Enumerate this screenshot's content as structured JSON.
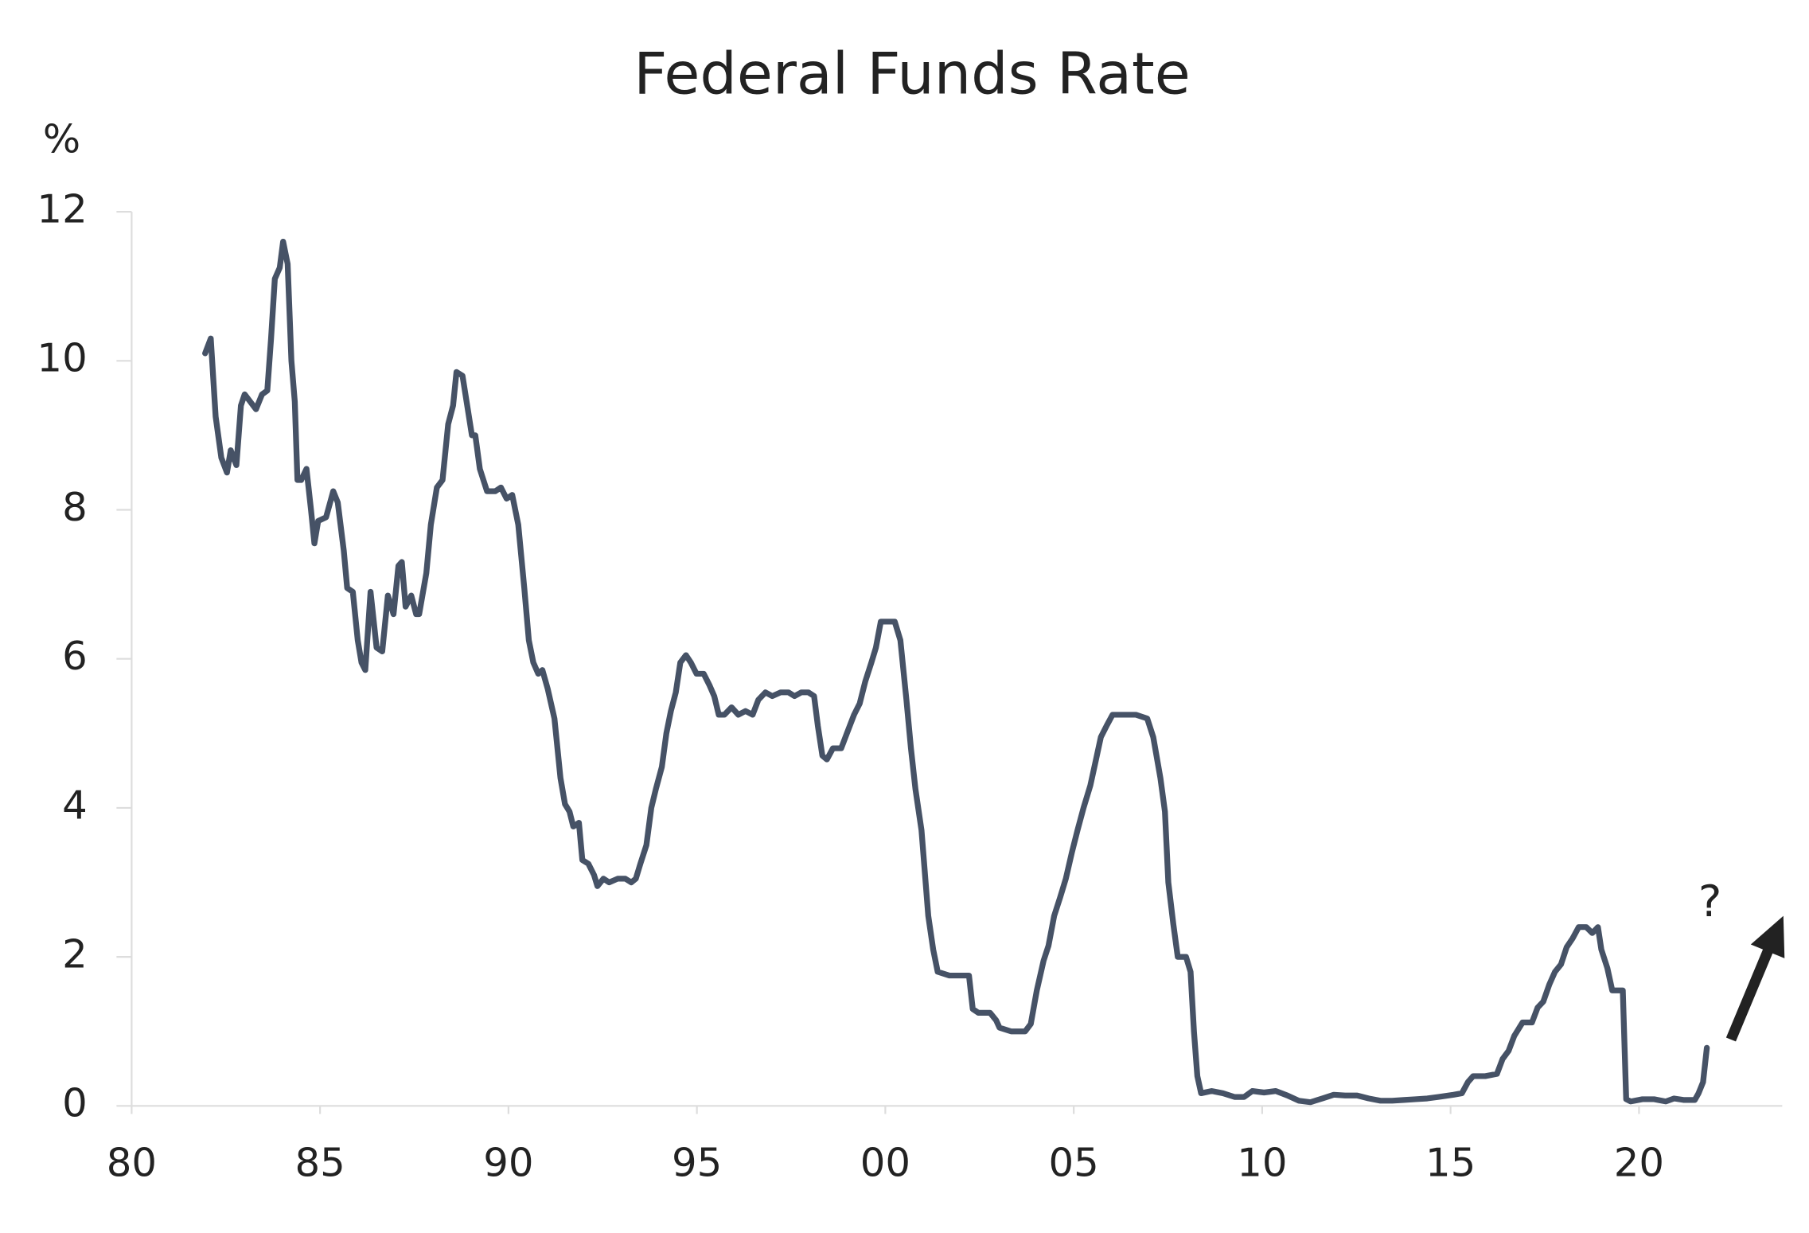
{
  "chart_data": {
    "type": "line",
    "title": "Federal Funds Rate",
    "y_label": "%",
    "annotation": "?",
    "color": "#465266",
    "xlim": [
      1980,
      2023.8
    ],
    "ylim": [
      0,
      12
    ],
    "xticks": [
      {
        "value": 1980,
        "label": "80"
      },
      {
        "value": 1985,
        "label": "85"
      },
      {
        "value": 1990,
        "label": "90"
      },
      {
        "value": 1995,
        "label": "95"
      },
      {
        "value": 2000,
        "label": "00"
      },
      {
        "value": 2005,
        "label": "05"
      },
      {
        "value": 2010,
        "label": "10"
      },
      {
        "value": 2015,
        "label": "15"
      },
      {
        "value": 2020,
        "label": "20"
      }
    ],
    "yticks": [
      0,
      2,
      4,
      6,
      8,
      10,
      12
    ],
    "x": [
      1981.95,
      1982.1,
      1982.23,
      1982.38,
      1982.53,
      1982.63,
      1982.78,
      1982.9,
      1983.0,
      1983.15,
      1983.3,
      1983.46,
      1983.6,
      1983.7,
      1983.8,
      1983.93,
      1984.02,
      1984.14,
      1984.24,
      1984.33,
      1984.4,
      1984.5,
      1984.64,
      1984.76,
      1984.85,
      1984.95,
      1985.16,
      1985.35,
      1985.47,
      1985.63,
      1985.72,
      1985.87,
      1986.0,
      1986.1,
      1986.2,
      1986.34,
      1986.5,
      1986.65,
      1986.8,
      1986.95,
      1987.08,
      1987.17,
      1987.27,
      1987.42,
      1987.55,
      1987.63,
      1987.82,
      1987.94,
      1988.1,
      1988.25,
      1988.4,
      1988.53,
      1988.62,
      1988.78,
      1989.03,
      1989.12,
      1989.24,
      1989.43,
      1989.65,
      1989.8,
      1989.95,
      1990.1,
      1990.26,
      1990.42,
      1990.54,
      1990.66,
      1990.79,
      1990.9,
      1991.04,
      1991.22,
      1991.38,
      1991.5,
      1991.62,
      1991.72,
      1991.87,
      1991.96,
      1992.12,
      1992.27,
      1992.36,
      1992.52,
      1992.67,
      1992.9,
      1993.1,
      1993.26,
      1993.38,
      1993.5,
      1993.66,
      1993.79,
      1993.91,
      1994.07,
      1994.19,
      1994.31,
      1994.44,
      1994.56,
      1994.71,
      1994.84,
      1994.99,
      1995.18,
      1995.33,
      1995.46,
      1995.58,
      1995.73,
      1995.92,
      1996.1,
      1996.29,
      1996.48,
      1996.63,
      1996.82,
      1997.0,
      1997.22,
      1997.43,
      1997.59,
      1997.77,
      1997.96,
      1998.11,
      1998.21,
      1998.33,
      1998.45,
      1998.61,
      1998.83,
      1998.98,
      1999.17,
      1999.32,
      1999.47,
      1999.63,
      1999.75,
      1999.88,
      2000.06,
      2000.25,
      2000.4,
      2000.56,
      2000.68,
      2000.8,
      2000.96,
      2001.14,
      2001.27,
      2001.39,
      2001.7,
      2002.0,
      2002.22,
      2002.32,
      2002.47,
      2002.78,
      2002.94,
      2003.03,
      2003.34,
      2003.71,
      2003.86,
      2004.02,
      2004.2,
      2004.33,
      2004.48,
      2004.64,
      2004.79,
      2004.95,
      2005.1,
      2005.26,
      2005.44,
      2005.57,
      2005.72,
      2005.87,
      2006.03,
      2006.34,
      2006.65,
      2006.95,
      2007.11,
      2007.3,
      2007.42,
      2007.51,
      2007.64,
      2007.76,
      2007.98,
      2008.1,
      2008.19,
      2008.28,
      2008.38,
      2008.66,
      2008.96,
      2009.27,
      2009.52,
      2009.74,
      2010.05,
      2010.36,
      2010.67,
      2010.97,
      2011.28,
      2011.6,
      2011.9,
      2012.2,
      2012.52,
      2012.83,
      2013.14,
      2013.45,
      2013.76,
      2014.07,
      2014.38,
      2014.68,
      2015.08,
      2015.3,
      2015.46,
      2015.6,
      2015.92,
      2016.23,
      2016.38,
      2016.54,
      2016.69,
      2016.91,
      2017.16,
      2017.31,
      2017.46,
      2017.62,
      2017.77,
      2017.93,
      2018.08,
      2018.24,
      2018.4,
      2018.6,
      2018.76,
      2018.91,
      2019.0,
      2019.16,
      2019.29,
      2019.47,
      2019.57,
      2019.66,
      2019.78,
      2020.09,
      2020.4,
      2020.71,
      2020.93,
      2021.18,
      2021.48,
      2021.58,
      2021.7,
      2021.8
    ],
    "values": [
      10.1,
      10.3,
      9.25,
      8.7,
      8.5,
      8.8,
      8.6,
      9.4,
      9.55,
      9.45,
      9.35,
      9.55,
      9.6,
      10.3,
      11.1,
      11.25,
      11.6,
      11.3,
      10.0,
      9.45,
      8.4,
      8.4,
      8.55,
      8.0,
      7.55,
      7.85,
      7.9,
      8.25,
      8.1,
      7.45,
      6.95,
      6.9,
      6.25,
      5.95,
      5.85,
      6.9,
      6.15,
      6.1,
      6.85,
      6.6,
      7.25,
      7.3,
      6.7,
      6.85,
      6.6,
      6.6,
      7.15,
      7.8,
      8.3,
      8.4,
      9.15,
      9.4,
      9.85,
      9.8,
      9.0,
      9.0,
      8.55,
      8.25,
      8.25,
      8.3,
      8.15,
      8.2,
      7.8,
      6.95,
      6.25,
      5.95,
      5.8,
      5.85,
      5.6,
      5.2,
      4.4,
      4.05,
      3.95,
      3.75,
      3.8,
      3.3,
      3.25,
      3.1,
      2.95,
      3.05,
      3.0,
      3.05,
      3.05,
      3.0,
      3.05,
      3.25,
      3.5,
      4.0,
      4.25,
      4.55,
      5.0,
      5.3,
      5.55,
      5.95,
      6.05,
      5.95,
      5.8,
      5.8,
      5.65,
      5.5,
      5.25,
      5.25,
      5.35,
      5.25,
      5.3,
      5.25,
      5.45,
      5.55,
      5.5,
      5.55,
      5.55,
      5.5,
      5.55,
      5.55,
      5.5,
      5.1,
      4.7,
      4.65,
      4.8,
      4.8,
      5.0,
      5.25,
      5.4,
      5.7,
      5.95,
      6.15,
      6.5,
      6.5,
      6.5,
      6.25,
      5.45,
      4.8,
      4.25,
      3.7,
      2.55,
      2.1,
      1.8,
      1.75,
      1.75,
      1.75,
      1.3,
      1.25,
      1.25,
      1.15,
      1.05,
      1.0,
      1.0,
      1.1,
      1.55,
      1.95,
      2.15,
      2.55,
      2.8,
      3.05,
      3.4,
      3.7,
      4.0,
      4.3,
      4.6,
      4.95,
      5.1,
      5.25,
      5.25,
      5.25,
      5.2,
      4.95,
      4.4,
      3.95,
      3.0,
      2.45,
      2.0,
      2.0,
      1.8,
      1.0,
      0.4,
      0.17,
      0.2,
      0.17,
      0.12,
      0.12,
      0.2,
      0.18,
      0.2,
      0.14,
      0.07,
      0.05,
      0.1,
      0.15,
      0.14,
      0.14,
      0.1,
      0.07,
      0.07,
      0.08,
      0.09,
      0.1,
      0.12,
      0.15,
      0.17,
      0.32,
      0.4,
      0.4,
      0.43,
      0.63,
      0.74,
      0.94,
      1.12,
      1.12,
      1.32,
      1.4,
      1.63,
      1.8,
      1.9,
      2.13,
      2.25,
      2.4,
      2.4,
      2.32,
      2.4,
      2.1,
      1.85,
      1.55,
      1.55,
      1.55,
      0.09,
      0.06,
      0.09,
      0.09,
      0.06,
      0.1,
      0.08,
      0.08,
      0.17,
      0.32,
      0.78
    ]
  }
}
